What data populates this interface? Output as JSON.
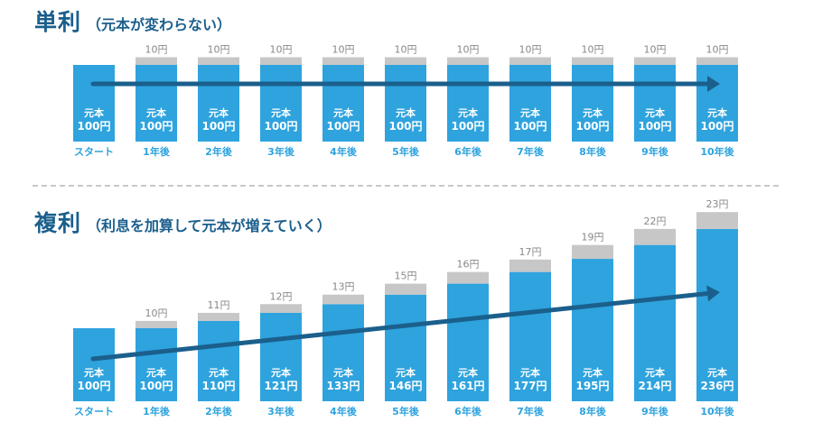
{
  "colors": {
    "principal": "#2ea3de",
    "interest": "#c7c7c7",
    "arrow": "#1b5f8c",
    "title": "#1b5f8c",
    "bar_text": "#ffffff",
    "interest_label": "#888888",
    "axis_label": "#2ea3de"
  },
  "chart_data": [
    {
      "type": "bar",
      "title": "単利",
      "subtitle": "（元本が変わらない）",
      "categories": [
        "スタート",
        "1年後",
        "2年後",
        "3年後",
        "4年後",
        "5年後",
        "6年後",
        "7年後",
        "8年後",
        "9年後",
        "10年後"
      ],
      "series": [
        {
          "values": [
            100,
            100,
            100,
            100,
            100,
            100,
            100,
            100,
            100,
            100,
            100
          ]
        },
        {
          "values": [
            0,
            10,
            10,
            10,
            10,
            10,
            10,
            10,
            10,
            10,
            10
          ]
        }
      ],
      "bar_label_prefix": "元本",
      "unit": "円",
      "stacked": true,
      "grid": false,
      "trend_arrow": true
    },
    {
      "type": "bar",
      "title": "複利",
      "subtitle": "（利息を加算して元本が増えていく）",
      "categories": [
        "スタート",
        "1年後",
        "2年後",
        "3年後",
        "4年後",
        "5年後",
        "6年後",
        "7年後",
        "8年後",
        "9年後",
        "10年後"
      ],
      "series": [
        {
          "values": [
            100,
            100,
            110,
            121,
            133,
            146,
            161,
            177,
            195,
            214,
            236
          ]
        },
        {
          "values": [
            0,
            10,
            11,
            12,
            13,
            15,
            16,
            17,
            19,
            22,
            23
          ]
        }
      ],
      "bar_label_prefix": "元本",
      "unit": "円",
      "stacked": true,
      "grid": false,
      "trend_arrow": true
    }
  ]
}
